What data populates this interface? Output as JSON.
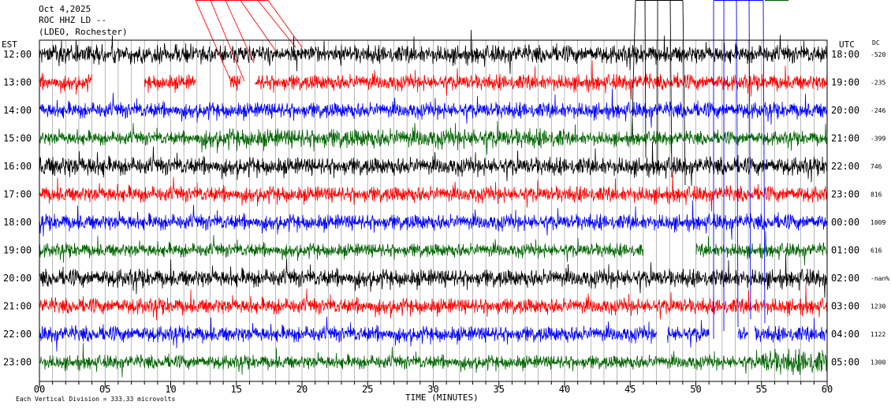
{
  "header": {
    "date": "Oct 4,2025",
    "station": "ROC HHZ LD --",
    "network": "(LDEO, Rochester)"
  },
  "left_axis_label": "EST",
  "right_axis_label": "UTC",
  "dc_label": "DC",
  "footer": {
    "scale_note": "Each Vertical Division =  333.33 microvolts"
  },
  "colors": {
    "black": "#000000",
    "red": "#ff0000",
    "blue": "#0000ff",
    "green": "#006400",
    "grid": "#888888"
  },
  "chart_data": {
    "type": "line",
    "subtype": "helicorder",
    "xlabel": "TIME (MINUTES)",
    "xlim": [
      0,
      60
    ],
    "xticks": [
      "00",
      "05",
      "10",
      "15",
      "20",
      "25",
      "30",
      "35",
      "40",
      "45",
      "50",
      "55",
      "60"
    ],
    "rows": [
      {
        "est": "12:00",
        "utc": "18:00",
        "dc": "-520",
        "color": "black"
      },
      {
        "est": "13:00",
        "utc": "19:00",
        "dc": "-235",
        "color": "red"
      },
      {
        "est": "14:00",
        "utc": "20:00",
        "dc": "-246",
        "color": "blue"
      },
      {
        "est": "15:00",
        "utc": "21:00",
        "dc": "-399",
        "color": "green"
      },
      {
        "est": "16:00",
        "utc": "22:00",
        "dc": "746",
        "color": "black"
      },
      {
        "est": "17:00",
        "utc": "23:00",
        "dc": "816",
        "color": "red"
      },
      {
        "est": "18:00",
        "utc": "00:00",
        "dc": "1009",
        "color": "blue"
      },
      {
        "est": "19:00",
        "utc": "01:00",
        "dc": "616",
        "color": "green"
      },
      {
        "est": "20:00",
        "utc": "02:00",
        "dc": "-nan%",
        "color": "black"
      },
      {
        "est": "21:00",
        "utc": "03:00",
        "dc": "1230",
        "color": "red"
      },
      {
        "est": "22:00",
        "utc": "04:00",
        "dc": "1122",
        "color": "blue"
      },
      {
        "est": "23:00",
        "utc": "05:00",
        "dc": "1300",
        "color": "green"
      }
    ]
  }
}
